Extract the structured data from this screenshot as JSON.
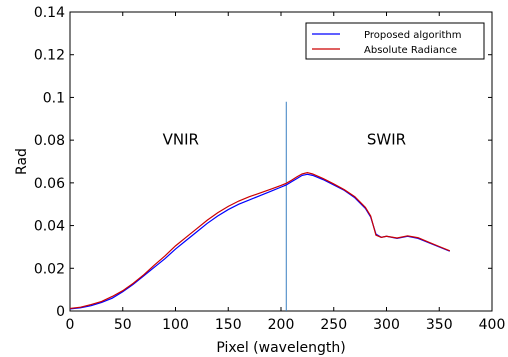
{
  "chart_data": {
    "type": "line",
    "xlabel": "Pixel (wavelength)",
    "ylabel": "Rad",
    "xlim": [
      0,
      400
    ],
    "ylim": [
      0,
      0.14
    ],
    "xticks": [
      0,
      50,
      100,
      150,
      200,
      250,
      300,
      350,
      400
    ],
    "xtick_labels": [
      "0",
      "50",
      "100",
      "150",
      "200",
      "250",
      "300",
      "350",
      "400"
    ],
    "yticks": [
      0,
      0.02,
      0.04,
      0.06,
      0.08,
      0.1,
      0.12,
      0.14
    ],
    "ytick_labels": [
      "0",
      "0.02",
      "0.04",
      "0.06",
      "0.08",
      "0.1",
      "0.12",
      "0.14"
    ],
    "grid": false,
    "legend_position": "top-right",
    "annotations": [
      {
        "text": "VNIR",
        "x": 105,
        "y": 0.078
      },
      {
        "text": "SWIR",
        "x": 300,
        "y": 0.078
      }
    ],
    "vertical_line": {
      "x": 205,
      "y_range": [
        0,
        0.098
      ],
      "color": "#3a7fc1"
    },
    "series": [
      {
        "name": "Proposed algorithm",
        "color": "#0000ff",
        "x": [
          0,
          10,
          20,
          30,
          40,
          50,
          60,
          70,
          80,
          90,
          100,
          110,
          120,
          130,
          140,
          150,
          160,
          170,
          180,
          190,
          200,
          205,
          210,
          215,
          220,
          225,
          230,
          240,
          250,
          260,
          270,
          280,
          285,
          290,
          295,
          300,
          310,
          320,
          330,
          340,
          350,
          360
        ],
        "y": [
          0.001,
          0.0015,
          0.0025,
          0.004,
          0.006,
          0.009,
          0.0125,
          0.0165,
          0.0205,
          0.0245,
          0.029,
          0.033,
          0.037,
          0.041,
          0.0445,
          0.0475,
          0.05,
          0.052,
          0.054,
          0.056,
          0.058,
          0.059,
          0.0605,
          0.062,
          0.0635,
          0.064,
          0.0635,
          0.0615,
          0.059,
          0.0565,
          0.053,
          0.048,
          0.044,
          0.036,
          0.0345,
          0.035,
          0.034,
          0.035,
          0.034,
          0.032,
          0.03,
          0.028
        ]
      },
      {
        "name": "Absolute Radiance",
        "color": "#cc0000",
        "x": [
          0,
          10,
          20,
          30,
          40,
          50,
          60,
          70,
          80,
          90,
          100,
          110,
          120,
          130,
          140,
          150,
          160,
          170,
          180,
          190,
          200,
          205,
          210,
          215,
          220,
          225,
          230,
          240,
          250,
          260,
          270,
          280,
          285,
          290,
          295,
          300,
          310,
          320,
          330,
          340,
          350,
          360
        ],
        "y": [
          0.0012,
          0.0018,
          0.003,
          0.0045,
          0.0068,
          0.0095,
          0.013,
          0.017,
          0.0215,
          0.0258,
          0.0305,
          0.0345,
          0.0385,
          0.0425,
          0.046,
          0.049,
          0.0515,
          0.0535,
          0.0552,
          0.057,
          0.0588,
          0.0598,
          0.0612,
          0.0628,
          0.0642,
          0.0648,
          0.0642,
          0.062,
          0.0595,
          0.0568,
          0.0535,
          0.0485,
          0.0445,
          0.0355,
          0.0345,
          0.035,
          0.0342,
          0.0352,
          0.0343,
          0.0322,
          0.0302,
          0.0282
        ]
      }
    ]
  }
}
